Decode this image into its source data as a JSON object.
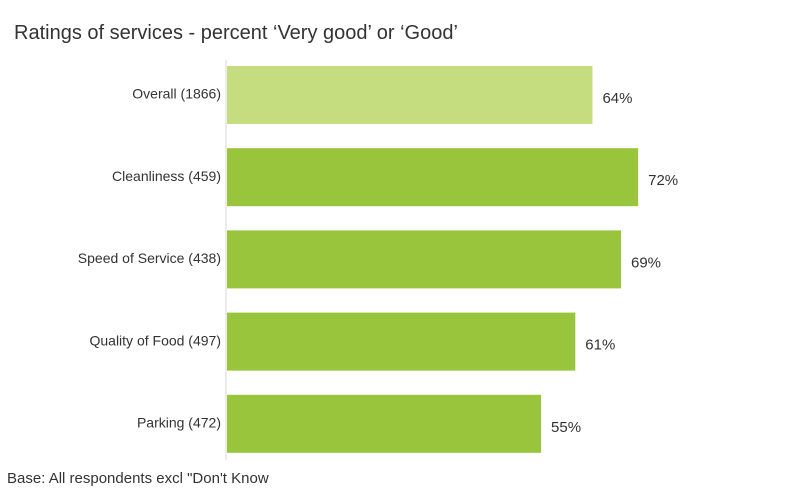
{
  "chart_data": {
    "type": "bar",
    "orientation": "horizontal",
    "title": "Ratings of services - percent ‘Very good’ or ‘Good’",
    "categories": [
      "Overall (1866)",
      "Cleanliness (459)",
      "Speed of Service (438)",
      "Quality of Food (497)",
      "Parking (472)"
    ],
    "values": [
      64,
      72,
      69,
      61,
      55
    ],
    "value_labels": [
      "64%",
      "72%",
      "69%",
      "61%",
      "55%"
    ],
    "xlim": [
      0,
      100
    ],
    "grid": false,
    "colors": {
      "highlight": "#c5dd7e",
      "bar": "#98c53b",
      "axis": "#d9d9d9"
    },
    "bar_color_keys": [
      "highlight",
      "bar",
      "bar",
      "bar",
      "bar"
    ]
  },
  "footnote": "Base: All respondents excl \"Don't Know"
}
